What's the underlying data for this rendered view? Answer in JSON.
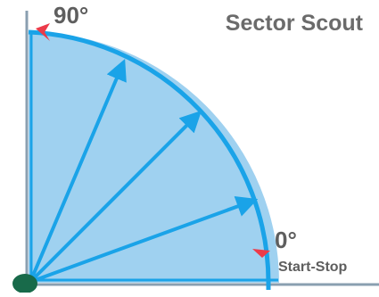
{
  "title": "Sector Scout",
  "angles": {
    "top": "90°",
    "bottom": "0°"
  },
  "start_stop_label": "Start-Stop",
  "colors": {
    "sector_fill": "#9fd1f0",
    "arc_stroke": "#1aa3e8",
    "arrow": "#1aa3e8",
    "axis": "#8a9fb0",
    "axis_inner": "#1aa3e8",
    "marker": "#ec3b4a",
    "origin": "#186a4a",
    "text": "#5e5e5e"
  },
  "arrow_angles_deg": [
    20,
    45,
    67
  ]
}
